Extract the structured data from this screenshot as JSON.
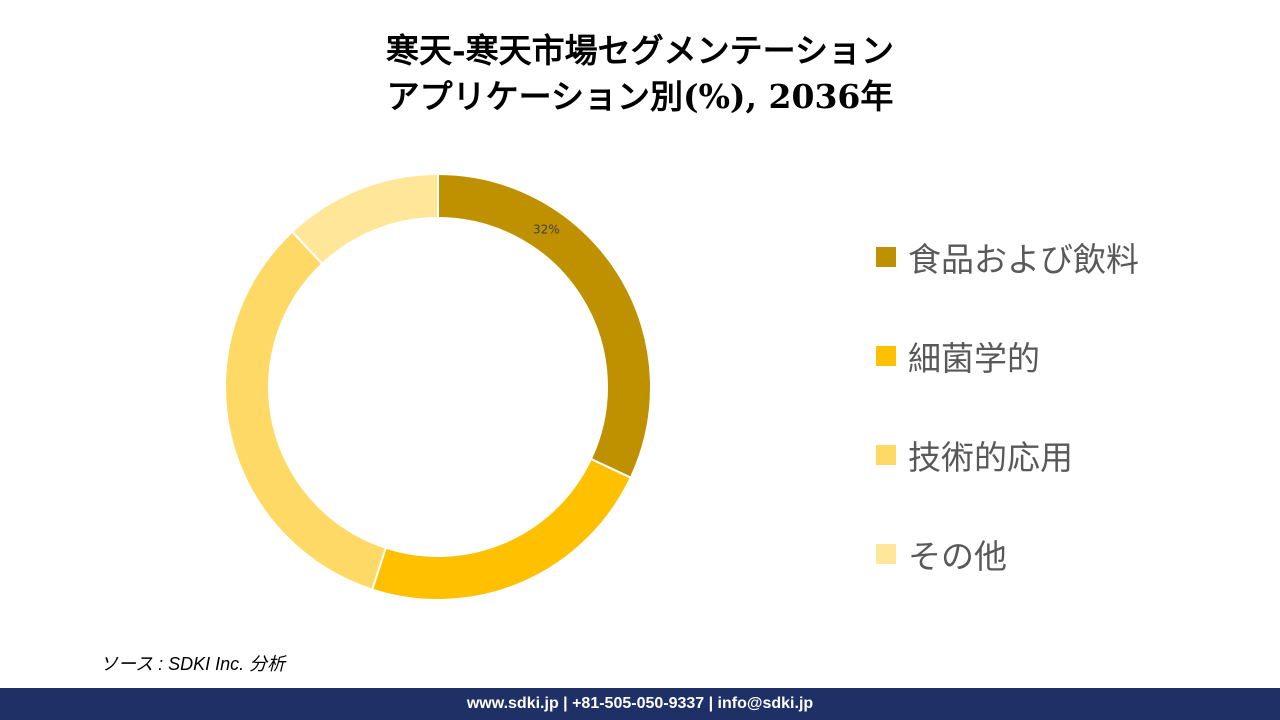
{
  "title": {
    "line1": "寒天-寒天市場セグメンテーション",
    "line2": "アプリケーション別(%), 2036年"
  },
  "chart_data": {
    "type": "pie",
    "donut": true,
    "categories": [
      "食品および飲料",
      "細菌学的",
      "技術的応用",
      "その他"
    ],
    "values": [
      32,
      23,
      33,
      12
    ],
    "colors": [
      "#bf9000",
      "#ffc000",
      "#ffd966",
      "#ffe699"
    ],
    "data_labels": [
      "32%",
      "",
      "",
      ""
    ],
    "legend_position": "right"
  },
  "source": "ソース : SDKI Inc. 分析",
  "footer": "www.sdki.jp | +81-505-050-9337 | info@sdki.jp"
}
